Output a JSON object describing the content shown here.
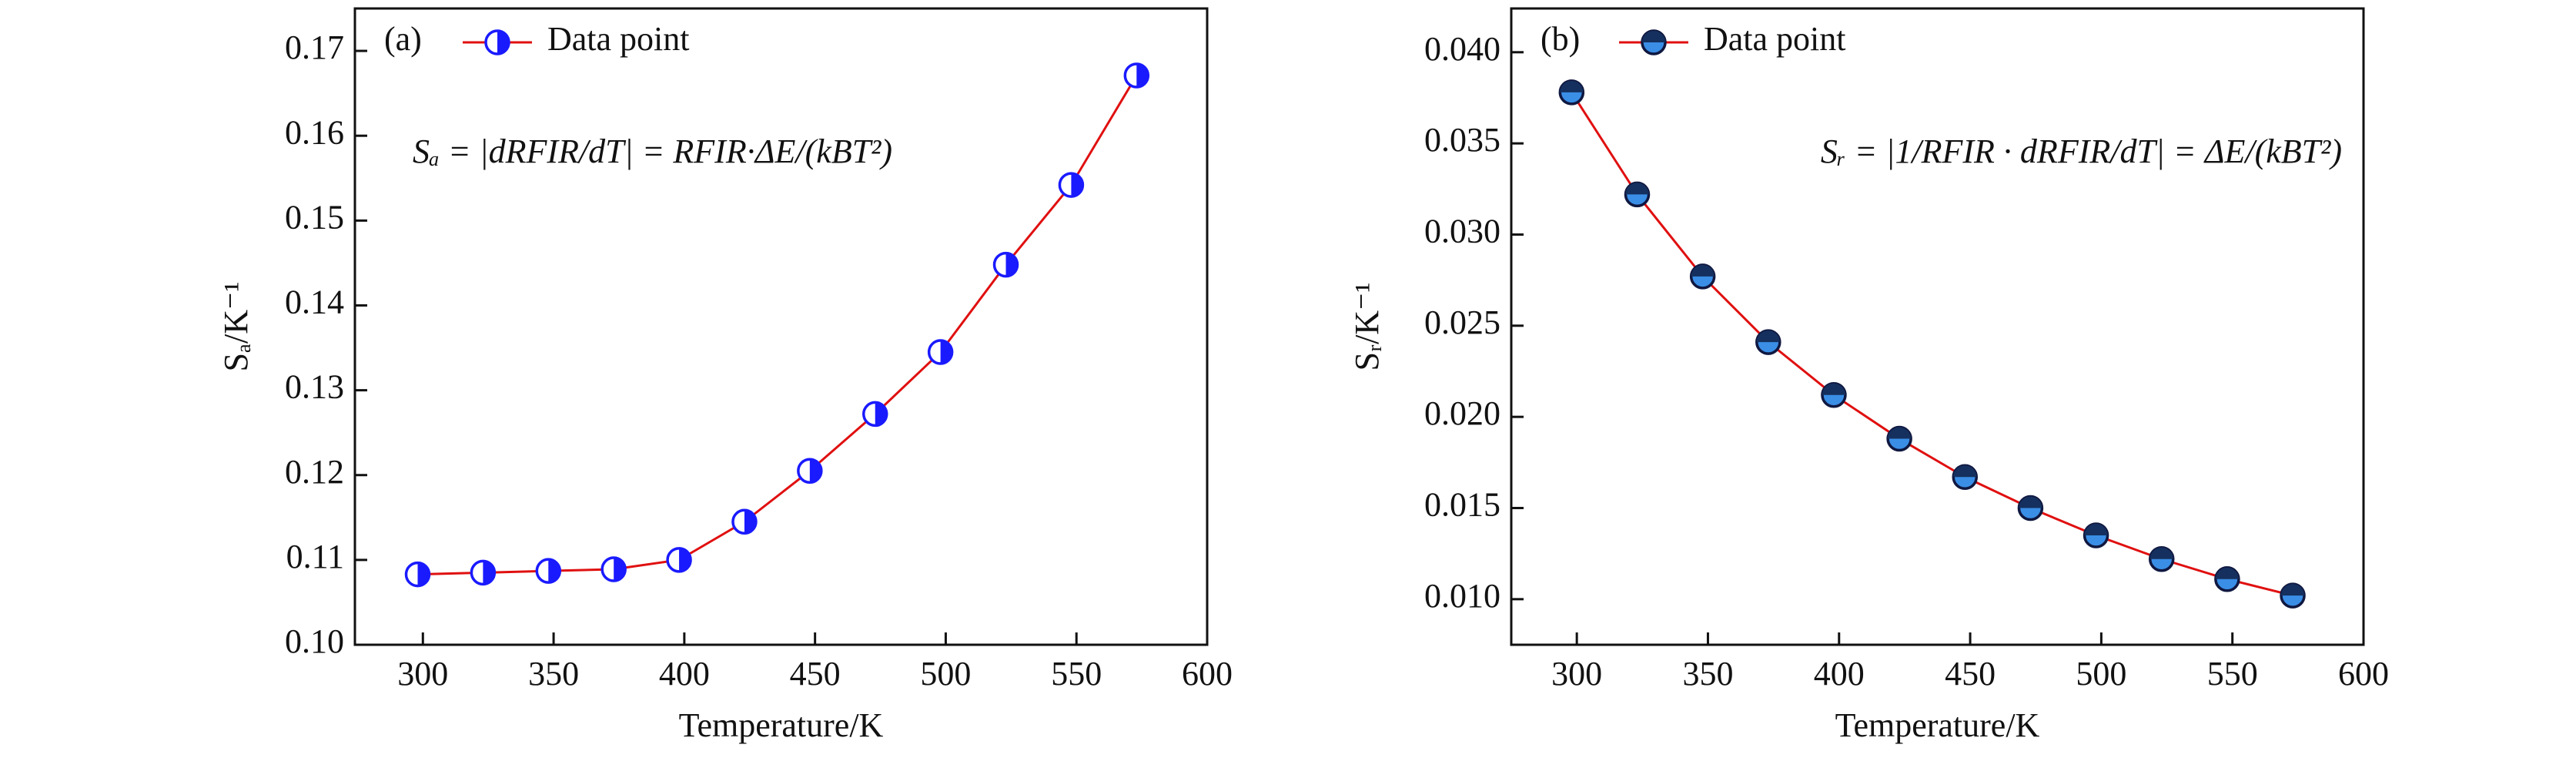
{
  "chart_data": [
    {
      "type": "line",
      "panel_label": "(a)",
      "annotation": "Sₐ = |dRFIR/dT| = RFIR·ΔE/(kBT²)",
      "xlabel": "Temperature/K",
      "ylabel": "Sₐ/K⁻¹",
      "x": [
        298,
        323,
        348,
        373,
        398,
        423,
        448,
        473,
        498,
        523,
        548,
        573
      ],
      "series": [
        {
          "name": "Data point",
          "color": "#1a1aff",
          "line_color": "#e01010",
          "marker_style": "half-right",
          "values": [
            0.1083,
            0.1085,
            0.1087,
            0.1089,
            0.11,
            0.1145,
            0.1205,
            0.1272,
            0.1345,
            0.1448,
            0.1542,
            0.1671
          ]
        }
      ],
      "xlim": [
        274,
        600
      ],
      "xticks": [
        300,
        350,
        400,
        450,
        500,
        550,
        600
      ],
      "ylim": [
        0.1,
        0.175
      ],
      "yticks": [
        {
          "value": 0.1,
          "label": "0.10"
        },
        0.11,
        0.12,
        0.13,
        0.14,
        0.15,
        0.16,
        0.17
      ],
      "legend": "upper left",
      "annotation_side": "left"
    },
    {
      "type": "line",
      "panel_label": "(b)",
      "annotation": "Sᵣ = |1/RFIR · dRFIR/dT| = ΔE/(kBT²)",
      "xlabel": "Temperature/K",
      "ylabel": "Sᵣ/K⁻¹",
      "x": [
        298,
        323,
        348,
        373,
        398,
        423,
        448,
        473,
        498,
        523,
        548,
        573
      ],
      "series": [
        {
          "name": "Data point",
          "color": "#3a8ee6",
          "line_color": "#e01010",
          "marker_style": "half-top",
          "values": [
            0.0378,
            0.0322,
            0.0277,
            0.0241,
            0.0212,
            0.0188,
            0.0167,
            0.015,
            0.0135,
            0.0122,
            0.0111,
            0.0102
          ]
        }
      ],
      "xlim": [
        275,
        600
      ],
      "xticks": [
        300,
        350,
        400,
        450,
        500,
        550,
        600
      ],
      "ylim": [
        0.0075,
        0.0424
      ],
      "yticks": [
        {
          "value": 0.01,
          "label": "0.010"
        },
        0.015,
        {
          "value": 0.02,
          "label": "0.020"
        },
        0.025,
        {
          "value": 0.03,
          "label": "0.030"
        },
        0.035,
        {
          "value": 0.04,
          "label": "0.040"
        }
      ],
      "legend": "upper left",
      "annotation_side": "right"
    }
  ]
}
